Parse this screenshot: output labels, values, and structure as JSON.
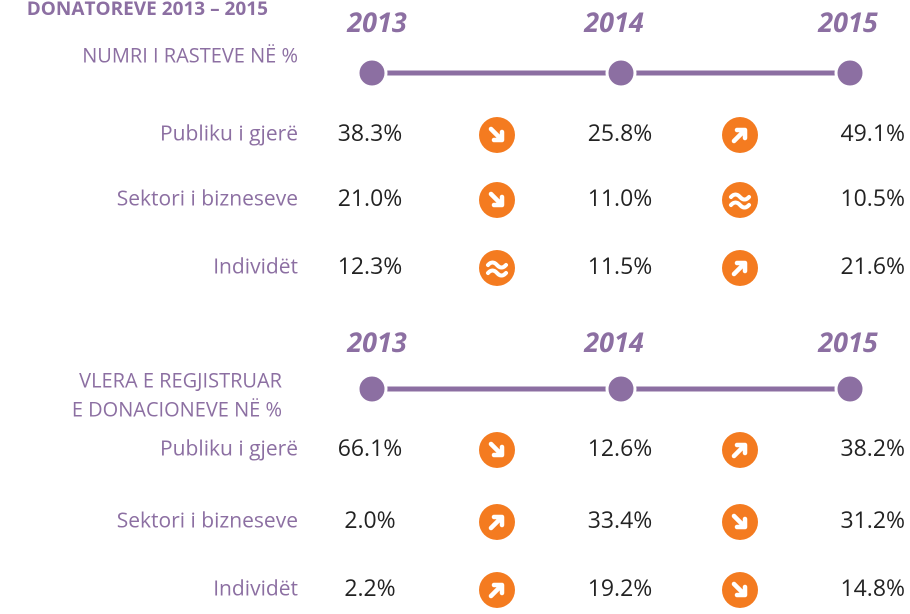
{
  "title": "DONATOREVE 2013 – 2015",
  "sections": [
    {
      "label": [
        "NUMRI I RASTEVE NË %"
      ],
      "years": [
        "2013",
        "2014",
        "2015"
      ],
      "rows": [
        {
          "label": "Publiku i gjerë",
          "values": [
            "38.3%",
            "25.8%",
            "49.1%"
          ]
        },
        {
          "label": "Sektori i bizneseve",
          "values": [
            "21.0%",
            "11.0%",
            "10.5%"
          ]
        },
        {
          "label": "Individët",
          "values": [
            "12.3%",
            "11.5%",
            "21.6%"
          ]
        }
      ]
    },
    {
      "label": [
        "VLERA E REGJISTRUAR",
        "E DONACIONEVE NË %"
      ],
      "years": [
        "2013",
        "2014",
        "2015"
      ],
      "rows": [
        {
          "label": "Publiku i gjerë",
          "values": [
            "66.1%",
            "12.6%",
            "38.2%"
          ]
        },
        {
          "label": "Sektori i bizneseve",
          "values": [
            "2.0%",
            "33.4%",
            "31.2%"
          ]
        },
        {
          "label": "Individët",
          "values": [
            "2.2%",
            "19.2%",
            "14.8%"
          ]
        }
      ]
    }
  ]
}
